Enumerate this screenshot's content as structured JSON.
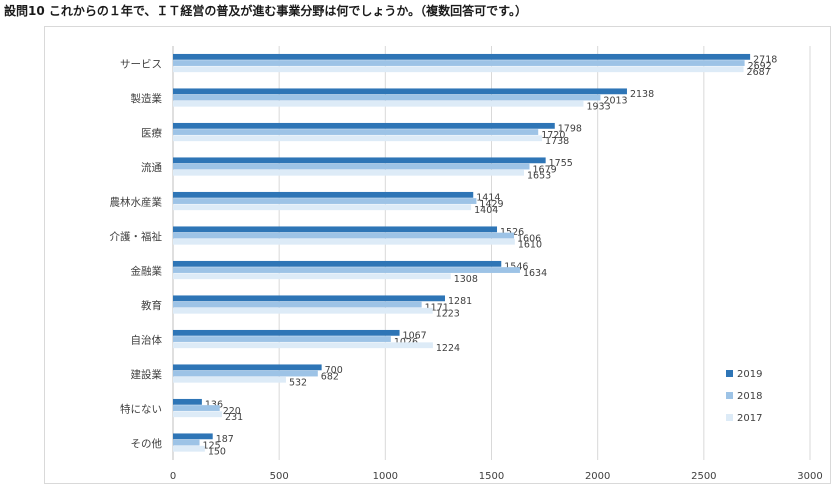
{
  "title": "設問10 これからの１年で、ＩＴ経営の普及が進む事業分野は何でしょうか。（複数回答可です。）",
  "colors": {
    "2019": "#2e75b6",
    "2018": "#9dc3e6",
    "2017": "#ddebf7",
    "grid": "#d9d9d9"
  },
  "chart_data": {
    "type": "bar",
    "orientation": "horizontal",
    "title": "設問10 これからの１年で、ＩＴ経営の普及が進む事業分野は何でしょうか。（複数回答可です。）",
    "categories": [
      "サービス",
      "製造業",
      "医療",
      "流通",
      "農林水産業",
      "介護・福祉",
      "金融業",
      "教育",
      "自治体",
      "建設業",
      "特にない",
      "その他"
    ],
    "series": [
      {
        "name": "2019",
        "values": [
          2718,
          2138,
          1798,
          1755,
          1414,
          1526,
          1546,
          1281,
          1067,
          700,
          136,
          187
        ]
      },
      {
        "name": "2018",
        "values": [
          2692,
          2013,
          1720,
          1679,
          1429,
          1606,
          1634,
          1171,
          1026,
          682,
          220,
          125
        ]
      },
      {
        "name": "2017",
        "values": [
          2687,
          1933,
          1738,
          1653,
          1404,
          1610,
          1308,
          1223,
          1224,
          532,
          231,
          150
        ]
      }
    ],
    "xlim": [
      0,
      3000
    ],
    "xticks": [
      0,
      500,
      1000,
      1500,
      2000,
      2500,
      3000
    ],
    "grid": true,
    "legend_position": "bottom-right",
    "legend": [
      "2019",
      "2018",
      "2017"
    ]
  }
}
